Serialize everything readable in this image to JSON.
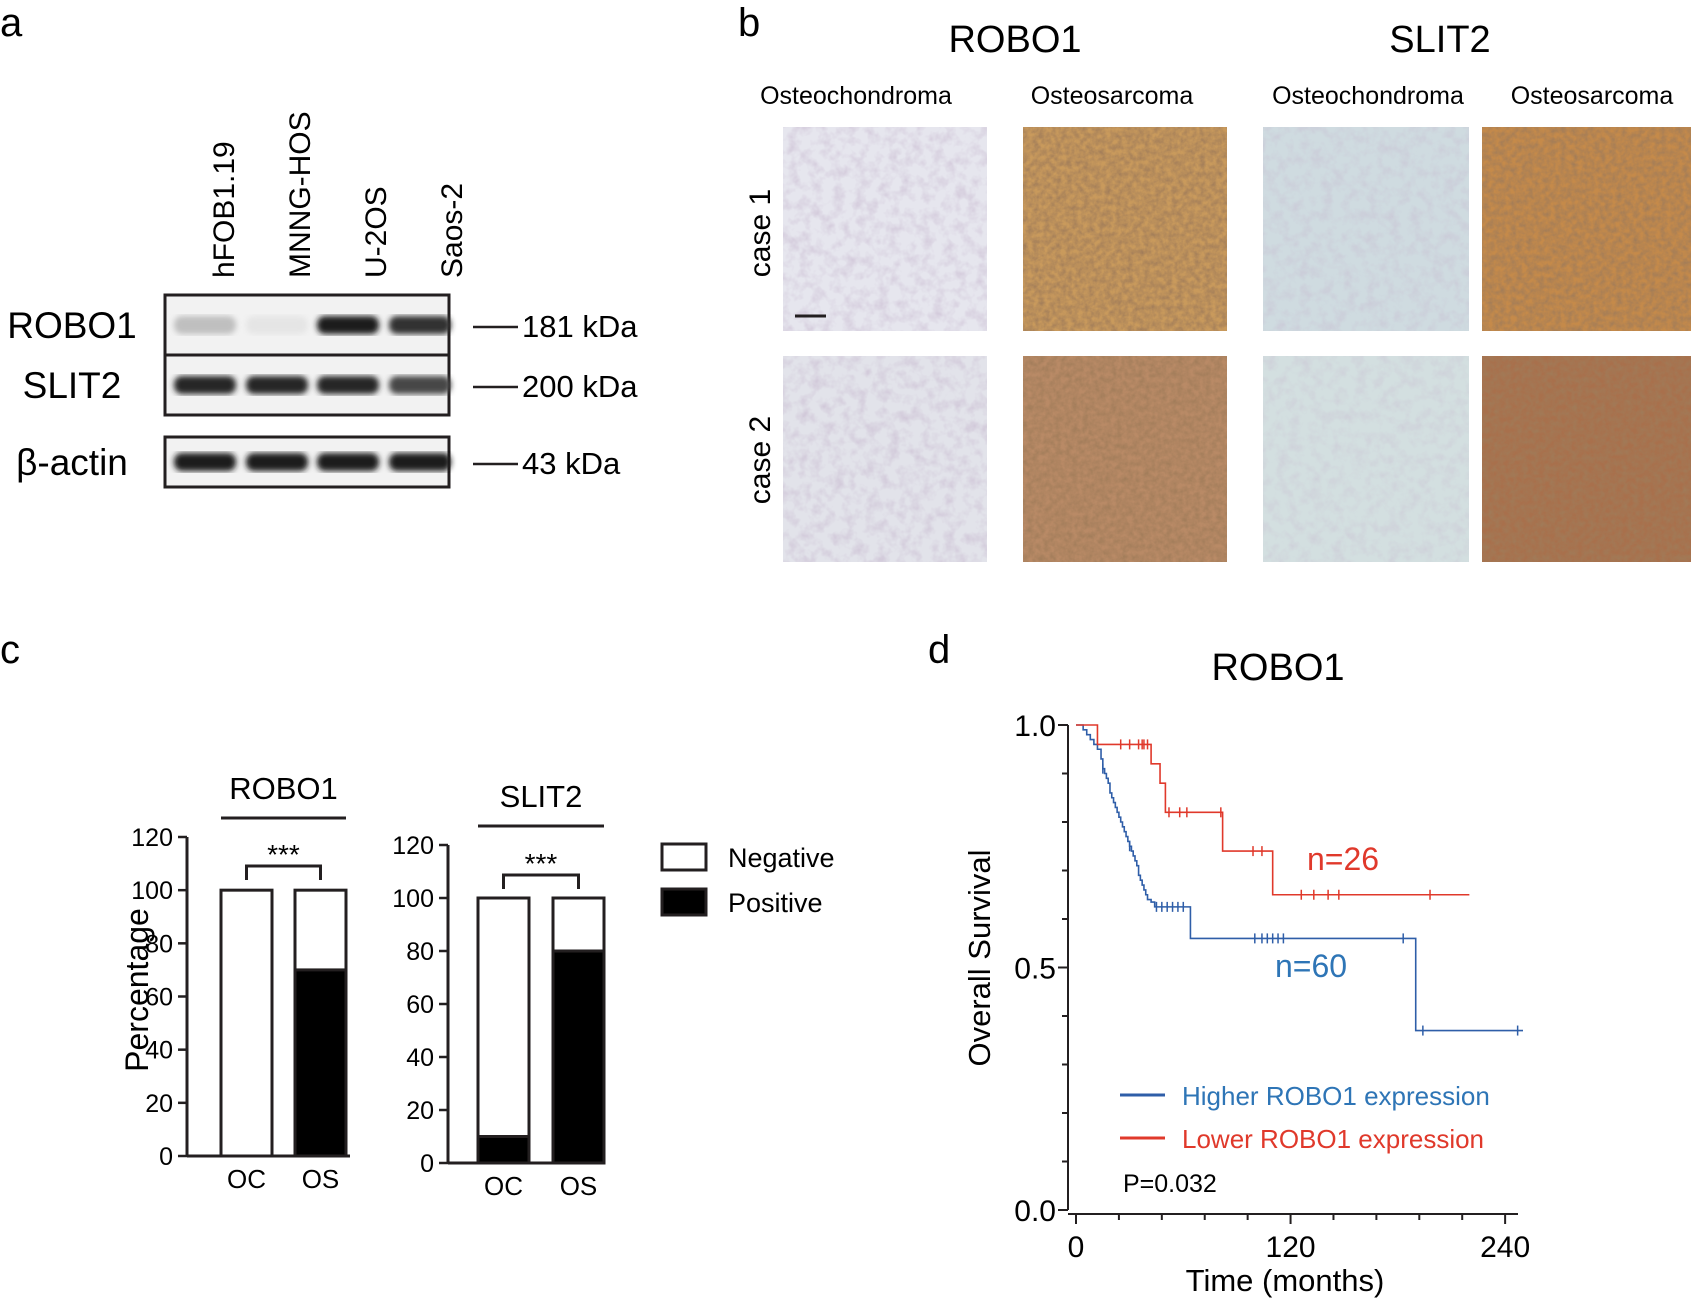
{
  "panels": {
    "a": "a",
    "b": "b",
    "c": "c",
    "d": "d"
  },
  "panel_a": {
    "lanes": [
      "hFOB1.19",
      "MNNG-HOS",
      "U-2OS",
      "Saos-2"
    ],
    "blots": [
      {
        "protein": "ROBO1",
        "size": "181 kDa",
        "band_intensity": [
          0.22,
          0.05,
          0.95,
          0.85
        ]
      },
      {
        "protein": "SLIT2",
        "size": "200 kDa",
        "band_intensity": [
          0.9,
          0.9,
          0.9,
          0.75
        ]
      },
      {
        "protein": "β-actin",
        "size": "43 kDa",
        "band_intensity": [
          0.95,
          0.95,
          0.95,
          0.95
        ]
      }
    ]
  },
  "panel_b": {
    "groups": [
      "ROBO1",
      "SLIT2"
    ],
    "tissues": [
      "Osteochondroma",
      "Osteosarcoma",
      "Osteochondroma",
      "Osteosarcoma"
    ],
    "cases": [
      "case 1",
      "case 2"
    ]
  },
  "colors": {
    "black": "#231f20",
    "higher": "#2f5ea8",
    "lower": "#e0392b",
    "higher_text": "#2e75b6",
    "lower_text": "#e0392b"
  },
  "chart_data": [
    {
      "type": "bar",
      "stacked": true,
      "title": "ROBO1",
      "ylabel": "Percentage",
      "categories": [
        "OC",
        "OS"
      ],
      "series": [
        {
          "name": "Negative",
          "values": [
            100,
            30
          ]
        },
        {
          "name": "Positive",
          "values": [
            0,
            70
          ]
        }
      ],
      "ylim": [
        0,
        120
      ],
      "yticks": [
        "0",
        "20",
        "40",
        "60",
        "80",
        "100",
        "120"
      ],
      "significance": "***"
    },
    {
      "type": "bar",
      "stacked": true,
      "title": "SLIT2",
      "categories": [
        "OC",
        "OS"
      ],
      "series": [
        {
          "name": "Negative",
          "values": [
            90,
            20
          ]
        },
        {
          "name": "Positive",
          "values": [
            10,
            80
          ]
        }
      ],
      "ylim": [
        0,
        120
      ],
      "yticks": [
        "0",
        "20",
        "40",
        "60",
        "80",
        "100",
        "120"
      ],
      "significance": "***",
      "legend": [
        "Negative",
        "Positive"
      ]
    },
    {
      "type": "line",
      "step": true,
      "title": "ROBO1",
      "xlabel": "Time (months)",
      "ylabel": "Overall Survival",
      "xlim": [
        0,
        250
      ],
      "ylim": [
        0,
        1
      ],
      "xticks": [
        "0",
        "120",
        "240"
      ],
      "yticks": [
        "0.0",
        "0.5",
        "1.0"
      ],
      "legend": [
        "Higher ROBO1 expression",
        "Lower ROBO1 expression"
      ],
      "annotations": [
        "n=26",
        "n=60",
        "P=0.032"
      ],
      "series": [
        {
          "name": "Higher ROBO1 expression",
          "x": [
            0,
            4,
            6,
            8,
            10,
            12,
            14,
            15,
            16,
            17,
            18,
            19,
            20,
            21,
            22,
            23,
            24,
            25,
            26,
            27,
            28,
            29,
            30,
            31,
            32,
            33,
            34,
            35,
            36,
            37,
            38,
            39,
            40,
            42,
            44,
            64,
            190,
            250
          ],
          "y": [
            1.0,
            0.99,
            0.98,
            0.97,
            0.96,
            0.95,
            0.93,
            0.91,
            0.9,
            0.89,
            0.88,
            0.86,
            0.85,
            0.84,
            0.83,
            0.82,
            0.81,
            0.8,
            0.79,
            0.78,
            0.77,
            0.76,
            0.75,
            0.74,
            0.73,
            0.72,
            0.71,
            0.69,
            0.68,
            0.67,
            0.66,
            0.65,
            0.64,
            0.635,
            0.625,
            0.56,
            0.37,
            0.37
          ],
          "censor_x": [
            15,
            30,
            45,
            48,
            51,
            54,
            57,
            60,
            100,
            104,
            107,
            110,
            113,
            116,
            183,
            194,
            247
          ],
          "censor_y": [
            0.91,
            0.75,
            0.625,
            0.625,
            0.625,
            0.625,
            0.625,
            0.625,
            0.56,
            0.56,
            0.56,
            0.56,
            0.56,
            0.56,
            0.56,
            0.37,
            0.37
          ]
        },
        {
          "name": "Lower ROBO1 expression",
          "x": [
            0,
            12,
            42,
            47,
            50,
            82,
            110,
            220
          ],
          "y": [
            1.0,
            0.96,
            0.92,
            0.88,
            0.82,
            0.74,
            0.65,
            0.65
          ],
          "censor_x": [
            25,
            30,
            35,
            37,
            38,
            40,
            52,
            58,
            62,
            81,
            99,
            104,
            126,
            133,
            141,
            147,
            198
          ],
          "censor_y": [
            0.96,
            0.96,
            0.96,
            0.96,
            0.96,
            0.96,
            0.82,
            0.82,
            0.82,
            0.82,
            0.74,
            0.74,
            0.65,
            0.65,
            0.65,
            0.65,
            0.65
          ]
        }
      ]
    }
  ]
}
